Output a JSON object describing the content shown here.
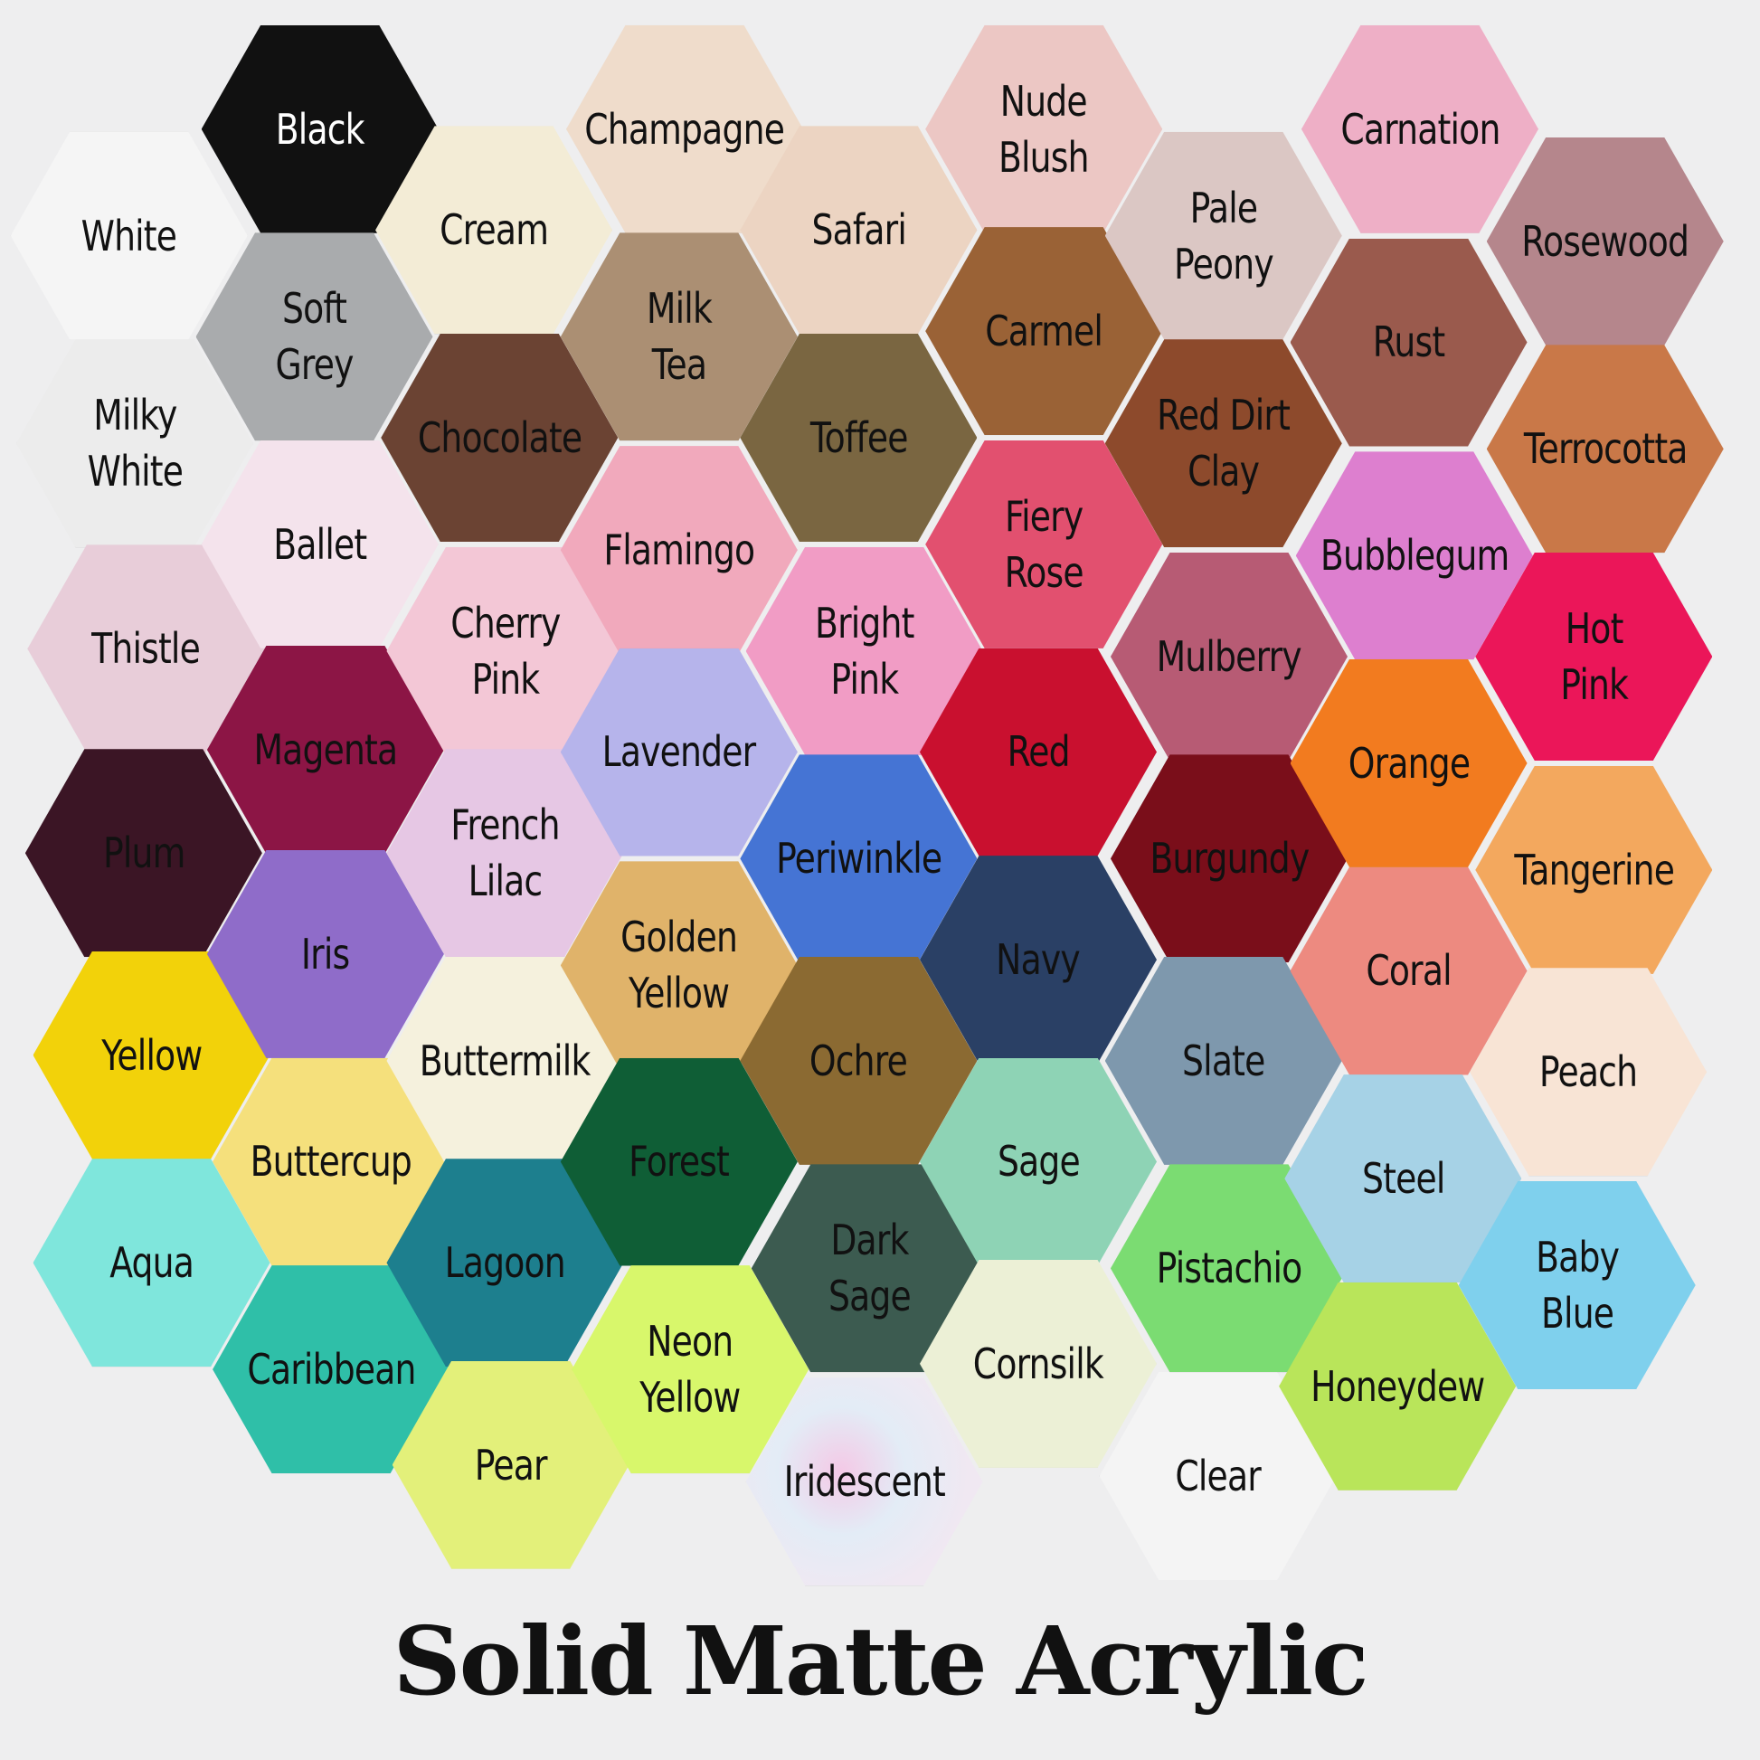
{
  "title": "Solid Matte Acrylic",
  "swatches": [
    {
      "name": "White",
      "color": "#f5f5f5"
    },
    {
      "name": "Milky\nWhite",
      "color": "#ececec"
    },
    {
      "name": "Thistle",
      "color": "#e8cdd9"
    },
    {
      "name": "Plum",
      "color": "#3b1525"
    },
    {
      "name": "Yellow",
      "color": "#f2d20a"
    },
    {
      "name": "Aqua",
      "color": "#7fe6dc"
    },
    {
      "name": "Black",
      "color": "#111111"
    },
    {
      "name": "Soft\nGrey",
      "color": "#a9abad"
    },
    {
      "name": "Ballet",
      "color": "#f4e3ec"
    },
    {
      "name": "Magenta",
      "color": "#8c1545"
    },
    {
      "name": "Iris",
      "color": "#8f6cc9"
    },
    {
      "name": "Buttercup",
      "color": "#f5e07c"
    },
    {
      "name": "Caribbean",
      "color": "#2fbfa8"
    },
    {
      "name": "Cream",
      "color": "#f3ecd6"
    },
    {
      "name": "Chocolate",
      "color": "#6b4333"
    },
    {
      "name": "Cherry\nPink",
      "color": "#f3c7d6"
    },
    {
      "name": "French\nLilac",
      "color": "#e6c7e4"
    },
    {
      "name": "Buttermilk",
      "color": "#f5f1dd"
    },
    {
      "name": "Lagoon",
      "color": "#1d7f8e"
    },
    {
      "name": "Pear",
      "color": "#e3f07a"
    },
    {
      "name": "Champagne",
      "color": "#efdccb"
    },
    {
      "name": "Milk\nTea",
      "color": "#ab8f73"
    },
    {
      "name": "Flamingo",
      "color": "#f1a9bc"
    },
    {
      "name": "Lavender",
      "color": "#b6b4eb"
    },
    {
      "name": "Golden\nYellow",
      "color": "#e0b36a"
    },
    {
      "name": "Forest",
      "color": "#0f5e36"
    },
    {
      "name": "Neon\nYellow",
      "color": "#d8f76b"
    },
    {
      "name": "Safari",
      "color": "#ecd4c2"
    },
    {
      "name": "Toffee",
      "color": "#7a6641"
    },
    {
      "name": "Bright\nPink",
      "color": "#f19cc5"
    },
    {
      "name": "Periwinkle",
      "color": "#4574d4"
    },
    {
      "name": "Ochre",
      "color": "#8b6a32"
    },
    {
      "name": "Dark\nSage",
      "color": "#3c5b50"
    },
    {
      "name": "Iridescent",
      "color": "#e8e4ee"
    },
    {
      "name": "Nude\nBlush",
      "color": "#ecc7c4"
    },
    {
      "name": "Carmel",
      "color": "#9a6236"
    },
    {
      "name": "Fiery\nRose",
      "color": "#e2506f"
    },
    {
      "name": "Red",
      "color": "#c9102f"
    },
    {
      "name": "Navy",
      "color": "#2a4065"
    },
    {
      "name": "Sage",
      "color": "#8ed3b5"
    },
    {
      "name": "Cornsilk",
      "color": "#ecf0d6"
    },
    {
      "name": "Pale\nPeony",
      "color": "#dbc7c4"
    },
    {
      "name": "Red Dirt\nClay",
      "color": "#8d4a2c"
    },
    {
      "name": "Mulberry",
      "color": "#b75b74"
    },
    {
      "name": "Burgundy",
      "color": "#7a0e1a"
    },
    {
      "name": "Slate",
      "color": "#7e98ad"
    },
    {
      "name": "Pistachio",
      "color": "#7bdc72"
    },
    {
      "name": "Clear",
      "color": "#eeeeee"
    },
    {
      "name": "Carnation",
      "color": "#eeafc6"
    },
    {
      "name": "Rust",
      "color": "#9a5a4d"
    },
    {
      "name": "Bubblegum",
      "color": "#dd7fcf"
    },
    {
      "name": "Orange",
      "color": "#f27b1f"
    },
    {
      "name": "Coral",
      "color": "#ed8a80"
    },
    {
      "name": "Steel",
      "color": "#a6d2e6"
    },
    {
      "name": "Honeydew",
      "color": "#b9e55a"
    },
    {
      "name": "Rosewood",
      "color": "#b5868c"
    },
    {
      "name": "Terrocotta",
      "color": "#c97848"
    },
    {
      "name": "Hot\nPink",
      "color": "#eb1659"
    },
    {
      "name": "Tangerine",
      "color": "#f3a85e"
    },
    {
      "name": "Peach",
      "color": "#f8e4d5"
    },
    {
      "name": "Baby\nBlue",
      "color": "#7fd0ed"
    }
  ]
}
